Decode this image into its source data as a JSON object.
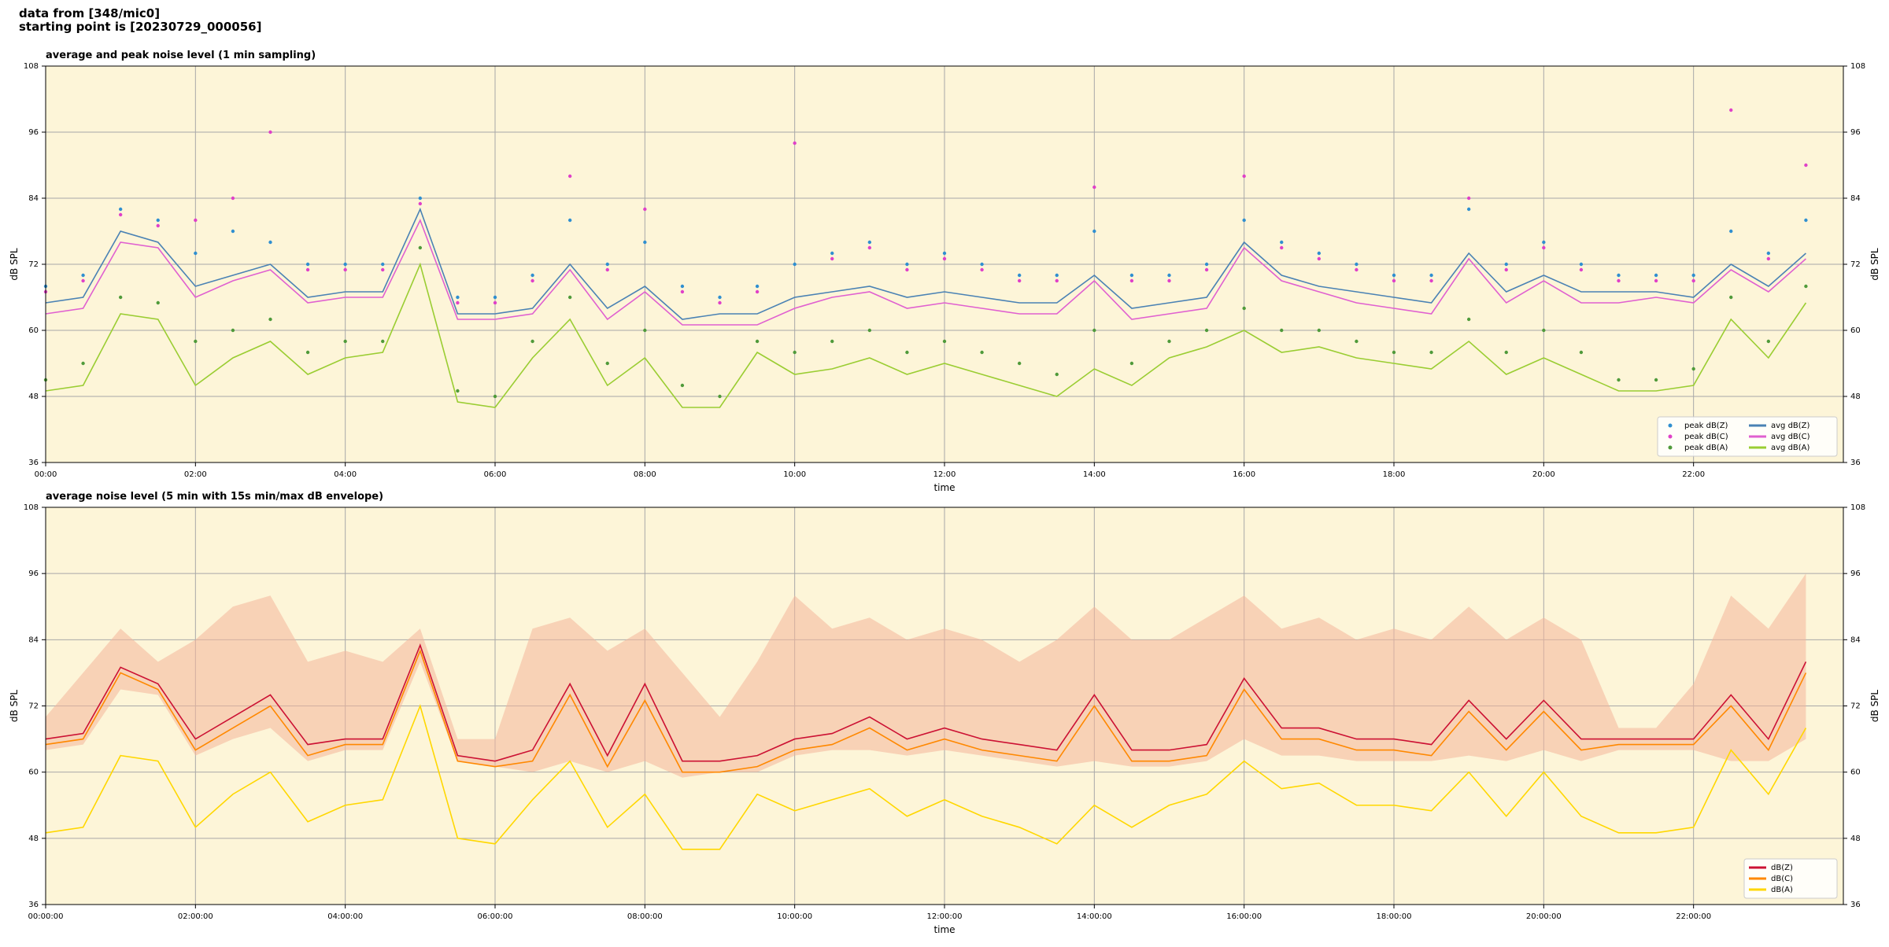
{
  "header": [
    "data from [348/mic0]",
    "starting point is [20230729_000056]"
  ],
  "chart_data": [
    {
      "type": "line",
      "title": "average and peak noise level (1 min sampling)",
      "xlabel": "time",
      "ylabel": "dB SPL",
      "x": [
        0,
        0.5,
        1,
        1.5,
        2,
        2.5,
        3,
        3.5,
        4,
        4.5,
        5,
        5.5,
        6,
        6.5,
        7,
        7.5,
        8,
        8.5,
        9,
        9.5,
        10,
        10.5,
        11,
        11.5,
        12,
        12.5,
        13,
        13.5,
        14,
        14.5,
        15,
        15.5,
        16,
        16.5,
        17,
        17.5,
        18,
        18.5,
        19,
        19.5,
        20,
        20.5,
        21,
        21.5,
        22,
        22.5,
        23,
        23.5
      ],
      "xlim": [
        0,
        24
      ],
      "ylim": [
        36,
        108
      ],
      "yticks": [
        36,
        48,
        60,
        72,
        84,
        96,
        108
      ],
      "xticks": [
        {
          "value": 0,
          "label": "00:00"
        },
        {
          "value": 2,
          "label": "02:00"
        },
        {
          "value": 4,
          "label": "04:00"
        },
        {
          "value": 6,
          "label": "06:00"
        },
        {
          "value": 8,
          "label": "08:00"
        },
        {
          "value": 10,
          "label": "10:00"
        },
        {
          "value": 12,
          "label": "12:00"
        },
        {
          "value": 14,
          "label": "14:00"
        },
        {
          "value": 16,
          "label": "16:00"
        },
        {
          "value": 18,
          "label": "18:00"
        },
        {
          "value": 20,
          "label": "20:00"
        },
        {
          "value": 22,
          "label": "22:00"
        }
      ],
      "grid": true,
      "legend": "lower right",
      "legend_columns": 2,
      "background": "#fdf5d8",
      "series": [
        {
          "name": "peak dB(Z)",
          "type": "scatter",
          "color": "#2f8fd0",
          "values": [
            68,
            70,
            82,
            80,
            74,
            78,
            76,
            72,
            72,
            72,
            84,
            66,
            66,
            70,
            80,
            72,
            76,
            68,
            66,
            68,
            72,
            74,
            76,
            72,
            74,
            72,
            70,
            70,
            78,
            70,
            70,
            72,
            80,
            76,
            74,
            72,
            70,
            70,
            82,
            72,
            76,
            72,
            70,
            70,
            70,
            78,
            74,
            80
          ]
        },
        {
          "name": "peak dB(C)",
          "type": "scatter",
          "color": "#e040c8",
          "values": [
            67,
            69,
            81,
            79,
            80,
            84,
            96,
            71,
            71,
            71,
            83,
            65,
            65,
            69,
            88,
            71,
            82,
            67,
            65,
            67,
            94,
            73,
            75,
            71,
            73,
            71,
            69,
            69,
            86,
            69,
            69,
            71,
            88,
            75,
            73,
            71,
            69,
            69,
            84,
            71,
            75,
            71,
            69,
            69,
            69,
            100,
            73,
            90
          ]
        },
        {
          "name": "peak dB(A)",
          "type": "scatter",
          "color": "#4f9a3a",
          "values": [
            51,
            54,
            66,
            65,
            58,
            60,
            62,
            56,
            58,
            58,
            75,
            49,
            48,
            58,
            66,
            54,
            60,
            50,
            48,
            58,
            56,
            58,
            60,
            56,
            58,
            56,
            54,
            52,
            60,
            54,
            58,
            60,
            64,
            60,
            60,
            58,
            56,
            56,
            62,
            56,
            60,
            56,
            51,
            51,
            53,
            66,
            58,
            68
          ]
        },
        {
          "name": "avg dB(Z)",
          "type": "line",
          "color": "#4a82b4",
          "values": [
            65,
            66,
            78,
            76,
            68,
            70,
            72,
            66,
            67,
            67,
            82,
            63,
            63,
            64,
            72,
            64,
            68,
            62,
            63,
            63,
            66,
            67,
            68,
            66,
            67,
            66,
            65,
            65,
            70,
            64,
            65,
            66,
            76,
            70,
            68,
            67,
            66,
            65,
            74,
            67,
            70,
            67,
            67,
            67,
            66,
            72,
            68,
            74
          ]
        },
        {
          "name": "avg dB(C)",
          "type": "line",
          "color": "#e060d0",
          "values": [
            63,
            64,
            76,
            75,
            66,
            69,
            71,
            65,
            66,
            66,
            80,
            62,
            62,
            63,
            71,
            62,
            67,
            61,
            61,
            61,
            64,
            66,
            67,
            64,
            65,
            64,
            63,
            63,
            69,
            62,
            63,
            64,
            75,
            69,
            67,
            65,
            64,
            63,
            73,
            65,
            69,
            65,
            65,
            66,
            65,
            71,
            67,
            73
          ]
        },
        {
          "name": "avg dB(A)",
          "type": "line",
          "color": "#9acd32",
          "values": [
            49,
            50,
            63,
            62,
            50,
            55,
            58,
            52,
            55,
            56,
            72,
            47,
            46,
            55,
            62,
            50,
            55,
            46,
            46,
            56,
            52,
            53,
            55,
            52,
            54,
            52,
            50,
            48,
            53,
            50,
            55,
            57,
            60,
            56,
            57,
            55,
            54,
            53,
            58,
            52,
            55,
            52,
            49,
            49,
            50,
            62,
            55,
            65
          ]
        }
      ]
    },
    {
      "type": "line",
      "title": "average noise level (5 min with 15s min/max dB envelope)",
      "xlabel": "time",
      "ylabel": "dB SPL",
      "x": [
        0,
        0.5,
        1,
        1.5,
        2,
        2.5,
        3,
        3.5,
        4,
        4.5,
        5,
        5.5,
        6,
        6.5,
        7,
        7.5,
        8,
        8.5,
        9,
        9.5,
        10,
        10.5,
        11,
        11.5,
        12,
        12.5,
        13,
        13.5,
        14,
        14.5,
        15,
        15.5,
        16,
        16.5,
        17,
        17.5,
        18,
        18.5,
        19,
        19.5,
        20,
        20.5,
        21,
        21.5,
        22,
        22.5,
        23,
        23.5
      ],
      "xlim": [
        0,
        24
      ],
      "ylim": [
        36,
        108
      ],
      "yticks": [
        36,
        48,
        60,
        72,
        84,
        96,
        108
      ],
      "xticks": [
        {
          "value": 0,
          "label": "00:00:00"
        },
        {
          "value": 2,
          "label": "02:00:00"
        },
        {
          "value": 4,
          "label": "04:00:00"
        },
        {
          "value": 6,
          "label": "06:00:00"
        },
        {
          "value": 8,
          "label": "08:00:00"
        },
        {
          "value": 10,
          "label": "10:00:00"
        },
        {
          "value": 12,
          "label": "12:00:00"
        },
        {
          "value": 14,
          "label": "14:00:00"
        },
        {
          "value": 16,
          "label": "16:00:00"
        },
        {
          "value": 18,
          "label": "18:00:00"
        },
        {
          "value": 20,
          "label": "20:00:00"
        },
        {
          "value": 22,
          "label": "22:00:00"
        }
      ],
      "grid": true,
      "legend": "lower right",
      "legend_columns": 1,
      "background": "#fdf5d8",
      "envelope": {
        "color": "#f4b49a",
        "max": [
          70,
          78,
          86,
          80,
          84,
          90,
          92,
          80,
          82,
          80,
          86,
          66,
          66,
          86,
          88,
          82,
          86,
          78,
          70,
          80,
          92,
          86,
          88,
          84,
          86,
          84,
          80,
          84,
          90,
          84,
          84,
          88,
          92,
          86,
          88,
          84,
          86,
          84,
          90,
          84,
          88,
          84,
          68,
          68,
          76,
          92,
          86,
          96
        ],
        "min": [
          64,
          65,
          75,
          74,
          63,
          66,
          68,
          62,
          64,
          64,
          80,
          62,
          61,
          60,
          62,
          60,
          62,
          59,
          60,
          60,
          63,
          64,
          64,
          63,
          64,
          63,
          62,
          61,
          62,
          61,
          61,
          62,
          66,
          63,
          63,
          62,
          62,
          62,
          63,
          62,
          64,
          62,
          64,
          64,
          64,
          62,
          62,
          66
        ]
      },
      "series": [
        {
          "name": "dB(Z)",
          "type": "line",
          "color": "#cc1133",
          "values": [
            66,
            67,
            79,
            76,
            66,
            70,
            74,
            65,
            66,
            66,
            83,
            63,
            62,
            64,
            76,
            63,
            76,
            62,
            62,
            63,
            66,
            67,
            70,
            66,
            68,
            66,
            65,
            64,
            74,
            64,
            64,
            65,
            77,
            68,
            68,
            66,
            66,
            65,
            73,
            66,
            73,
            66,
            66,
            66,
            66,
            74,
            66,
            80
          ]
        },
        {
          "name": "dB(C)",
          "type": "line",
          "color": "#ff8800",
          "values": [
            65,
            66,
            78,
            75,
            64,
            68,
            72,
            63,
            65,
            65,
            82,
            62,
            61,
            62,
            74,
            61,
            73,
            60,
            60,
            61,
            64,
            65,
            68,
            64,
            66,
            64,
            63,
            62,
            72,
            62,
            62,
            63,
            75,
            66,
            66,
            64,
            64,
            63,
            71,
            64,
            71,
            64,
            65,
            65,
            65,
            72,
            64,
            78
          ]
        },
        {
          "name": "dB(A)",
          "type": "line",
          "color": "#ffd700",
          "values": [
            49,
            50,
            63,
            62,
            50,
            56,
            60,
            51,
            54,
            55,
            72,
            48,
            47,
            55,
            62,
            50,
            56,
            46,
            46,
            56,
            53,
            55,
            57,
            52,
            55,
            52,
            50,
            47,
            54,
            50,
            54,
            56,
            62,
            57,
            58,
            54,
            54,
            53,
            60,
            52,
            60,
            52,
            49,
            49,
            50,
            64,
            56,
            68
          ]
        }
      ]
    }
  ]
}
